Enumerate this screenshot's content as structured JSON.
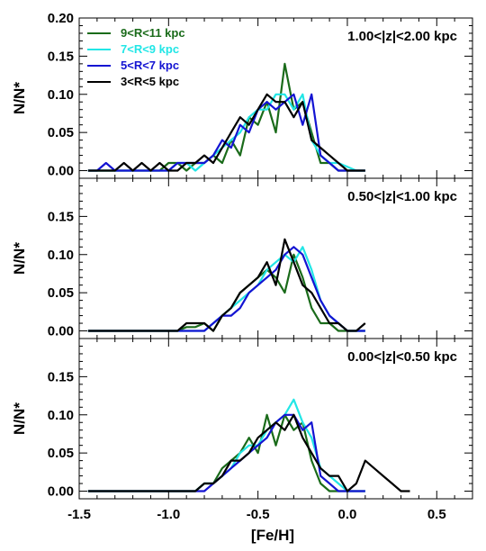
{
  "chart_data": {
    "type": "line",
    "xlabel": "[Fe/H]",
    "ylabel": "N/N*",
    "xlim": [
      -1.5,
      0.7
    ],
    "ylim": [
      -0.01,
      0.2
    ],
    "x_ticks": [
      "-1.5",
      "-1.0",
      "-0.5",
      "0.0",
      "0.5"
    ],
    "y_ticks": [
      "0.00",
      "0.05",
      "0.10",
      "0.15"
    ],
    "y_ticks_top": [
      "0.00",
      "0.05",
      "0.10",
      "0.15",
      "0.20"
    ],
    "legend": [
      {
        "name": "9<R<11 kpc",
        "color": "#1a6b1a"
      },
      {
        "name": "7<R<9 kpc",
        "color": "#22e6e6"
      },
      {
        "name": "5<R<7 kpc",
        "color": "#1414d2"
      },
      {
        "name": "3<R<5 kpc",
        "color": "#000000"
      }
    ],
    "panels": [
      {
        "label": "1.00<|z|<2.00 kpc",
        "series": [
          {
            "name": "9<R<11 kpc",
            "color": "#1a6b1a",
            "x": [
              -1.45,
              -1.4,
              -1.35,
              -1.3,
              -1.25,
              -1.2,
              -1.15,
              -1.1,
              -1.05,
              -1.0,
              -0.95,
              -0.9,
              -0.85,
              -0.8,
              -0.75,
              -0.7,
              -0.65,
              -0.6,
              -0.55,
              -0.5,
              -0.45,
              -0.4,
              -0.35,
              -0.3,
              -0.25,
              -0.2,
              -0.15,
              -0.1,
              -0.05,
              0.0,
              0.05,
              0.1
            ],
            "y": [
              0,
              0,
              0,
              0,
              0,
              0,
              0,
              0,
              0,
              0.01,
              0.01,
              0,
              0.01,
              0.01,
              0.02,
              0.01,
              0.04,
              0.02,
              0.07,
              0.06,
              0.09,
              0.05,
              0.14,
              0.08,
              0.09,
              0.05,
              0.01,
              0.01,
              0,
              0,
              0,
              0
            ]
          },
          {
            "name": "7<R<9 kpc",
            "color": "#22e6e6",
            "x": [
              -1.45,
              -1.4,
              -1.35,
              -1.3,
              -1.25,
              -1.2,
              -1.15,
              -1.1,
              -1.05,
              -1.0,
              -0.95,
              -0.9,
              -0.85,
              -0.8,
              -0.75,
              -0.7,
              -0.65,
              -0.6,
              -0.55,
              -0.5,
              -0.45,
              -0.4,
              -0.35,
              -0.3,
              -0.25,
              -0.2,
              -0.15,
              -0.1,
              -0.05,
              0.0,
              0.05,
              0.1
            ],
            "y": [
              0,
              0,
              0,
              0,
              0,
              0,
              0,
              0,
              0,
              0,
              0.01,
              0.01,
              0,
              0.01,
              0.02,
              0.03,
              0.04,
              0.05,
              0.07,
              0.08,
              0.08,
              0.1,
              0.1,
              0.08,
              0.1,
              0.04,
              0.02,
              0.01,
              0.01,
              0.005,
              0,
              0
            ]
          },
          {
            "name": "5<R<7 kpc",
            "color": "#1414d2",
            "x": [
              -1.45,
              -1.4,
              -1.35,
              -1.3,
              -1.25,
              -1.2,
              -1.15,
              -1.1,
              -1.05,
              -1.0,
              -0.95,
              -0.9,
              -0.85,
              -0.8,
              -0.75,
              -0.7,
              -0.65,
              -0.6,
              -0.55,
              -0.5,
              -0.45,
              -0.4,
              -0.35,
              -0.3,
              -0.25,
              -0.2,
              -0.15,
              -0.1,
              -0.05,
              0.0,
              0.05,
              0.1
            ],
            "y": [
              0,
              0,
              0.01,
              0,
              0,
              0,
              0,
              0,
              0,
              0,
              0.01,
              0.01,
              0.01,
              0.01,
              0.02,
              0.04,
              0.03,
              0.06,
              0.05,
              0.08,
              0.09,
              0.08,
              0.09,
              0.1,
              0.06,
              0.1,
              0.02,
              0.01,
              0,
              0,
              0,
              0
            ]
          },
          {
            "name": "3<R<5 kpc",
            "color": "#000000",
            "x": [
              -1.45,
              -1.4,
              -1.35,
              -1.3,
              -1.25,
              -1.2,
              -1.15,
              -1.1,
              -1.05,
              -1.0,
              -0.95,
              -0.9,
              -0.85,
              -0.8,
              -0.75,
              -0.7,
              -0.65,
              -0.6,
              -0.55,
              -0.5,
              -0.45,
              -0.4,
              -0.35,
              -0.3,
              -0.25,
              -0.2,
              -0.15,
              -0.1,
              -0.05,
              0.0,
              0.05,
              0.1
            ],
            "y": [
              0,
              0,
              0,
              0,
              0.01,
              0,
              0.01,
              0,
              0.01,
              0,
              0,
              0.01,
              0.01,
              0.02,
              0.01,
              0.03,
              0.05,
              0.07,
              0.06,
              0.08,
              0.1,
              0.09,
              0.09,
              0.07,
              0.09,
              0.04,
              0.03,
              0.02,
              0.01,
              0,
              0,
              0
            ]
          }
        ]
      },
      {
        "label": "0.50<|z|<1.00 kpc",
        "series": [
          {
            "name": "9<R<11 kpc",
            "color": "#1a6b1a",
            "x": [
              -1.45,
              -1.4,
              -1.35,
              -1.3,
              -1.25,
              -1.2,
              -1.15,
              -1.1,
              -1.05,
              -1.0,
              -0.95,
              -0.9,
              -0.85,
              -0.8,
              -0.75,
              -0.7,
              -0.65,
              -0.6,
              -0.55,
              -0.5,
              -0.45,
              -0.4,
              -0.35,
              -0.3,
              -0.25,
              -0.2,
              -0.15,
              -0.1,
              -0.05,
              0.0,
              0.05,
              0.1
            ],
            "y": [
              0,
              0,
              0,
              0,
              0,
              0,
              0,
              0,
              0,
              0,
              0,
              0.005,
              0.005,
              0.01,
              0,
              0.02,
              0.03,
              0.05,
              0.06,
              0.07,
              0.08,
              0.07,
              0.05,
              0.1,
              0.07,
              0.03,
              0.01,
              0.01,
              0,
              0,
              0,
              0
            ]
          },
          {
            "name": "7<R<9 kpc",
            "color": "#22e6e6",
            "x": [
              -1.45,
              -1.4,
              -1.35,
              -1.3,
              -1.25,
              -1.2,
              -1.15,
              -1.1,
              -1.05,
              -1.0,
              -0.95,
              -0.9,
              -0.85,
              -0.8,
              -0.75,
              -0.7,
              -0.65,
              -0.6,
              -0.55,
              -0.5,
              -0.45,
              -0.4,
              -0.35,
              -0.3,
              -0.25,
              -0.2,
              -0.15,
              -0.1,
              -0.05,
              0.0,
              0.05,
              0.1
            ],
            "y": [
              0,
              0,
              0,
              0,
              0,
              0,
              0,
              0,
              0,
              0,
              0,
              0,
              0,
              0,
              0.01,
              0.02,
              0.03,
              0.04,
              0.05,
              0.06,
              0.08,
              0.09,
              0.1,
              0.09,
              0.11,
              0.08,
              0.04,
              0.02,
              0.01,
              0,
              0,
              0
            ]
          },
          {
            "name": "5<R<7 kpc",
            "color": "#1414d2",
            "x": [
              -1.45,
              -1.4,
              -1.35,
              -1.3,
              -1.25,
              -1.2,
              -1.15,
              -1.1,
              -1.05,
              -1.0,
              -0.95,
              -0.9,
              -0.85,
              -0.8,
              -0.75,
              -0.7,
              -0.65,
              -0.6,
              -0.55,
              -0.5,
              -0.45,
              -0.4,
              -0.35,
              -0.3,
              -0.25,
              -0.2,
              -0.15,
              -0.1,
              -0.05,
              0.0,
              0.05,
              0.1
            ],
            "y": [
              0,
              0,
              0,
              0,
              0,
              0,
              0,
              0,
              0,
              0,
              0,
              0,
              0,
              0,
              0.01,
              0.02,
              0.02,
              0.03,
              0.05,
              0.06,
              0.07,
              0.08,
              0.1,
              0.11,
              0.1,
              0.07,
              0.04,
              0.02,
              0.01,
              0,
              0,
              0
            ]
          },
          {
            "name": "3<R<5 kpc",
            "color": "#000000",
            "x": [
              -1.45,
              -1.4,
              -1.35,
              -1.3,
              -1.25,
              -1.2,
              -1.15,
              -1.1,
              -1.05,
              -1.0,
              -0.95,
              -0.9,
              -0.85,
              -0.8,
              -0.75,
              -0.7,
              -0.65,
              -0.6,
              -0.55,
              -0.5,
              -0.45,
              -0.4,
              -0.35,
              -0.3,
              -0.25,
              -0.2,
              -0.15,
              -0.1,
              -0.05,
              0.0,
              0.05,
              0.1
            ],
            "y": [
              0,
              0,
              0,
              0,
              0,
              0,
              0,
              0,
              0,
              0,
              0,
              0.01,
              0.01,
              0.01,
              0,
              0.02,
              0.03,
              0.05,
              0.06,
              0.07,
              0.09,
              0.06,
              0.12,
              0.09,
              0.06,
              0.05,
              0.03,
              0.01,
              0.01,
              0,
              0,
              0.01
            ]
          }
        ]
      },
      {
        "label": "0.00<|z|<0.50 kpc",
        "series": [
          {
            "name": "9<R<11 kpc",
            "color": "#1a6b1a",
            "x": [
              -1.45,
              -1.4,
              -1.35,
              -1.3,
              -1.25,
              -1.2,
              -1.15,
              -1.1,
              -1.05,
              -1.0,
              -0.95,
              -0.9,
              -0.85,
              -0.8,
              -0.75,
              -0.7,
              -0.65,
              -0.6,
              -0.55,
              -0.5,
              -0.45,
              -0.4,
              -0.35,
              -0.3,
              -0.25,
              -0.2,
              -0.15,
              -0.1,
              -0.05,
              0.0,
              0.05,
              0.1
            ],
            "y": [
              0,
              0,
              0,
              0,
              0,
              0,
              0,
              0,
              0,
              0,
              0,
              0,
              0,
              0.01,
              0.01,
              0.03,
              0.04,
              0.05,
              0.07,
              0.05,
              0.1,
              0.06,
              0.1,
              0.08,
              0.09,
              0.04,
              0.01,
              0,
              0,
              0,
              0,
              0
            ]
          },
          {
            "name": "7<R<9 kpc",
            "color": "#22e6e6",
            "x": [
              -1.45,
              -1.4,
              -1.35,
              -1.3,
              -1.25,
              -1.2,
              -1.15,
              -1.1,
              -1.05,
              -1.0,
              -0.95,
              -0.9,
              -0.85,
              -0.8,
              -0.75,
              -0.7,
              -0.65,
              -0.6,
              -0.55,
              -0.5,
              -0.45,
              -0.4,
              -0.35,
              -0.3,
              -0.25,
              -0.2,
              -0.15,
              -0.1,
              -0.05,
              0.0,
              0.05,
              0.1
            ],
            "y": [
              0,
              0,
              0,
              0,
              0,
              0,
              0,
              0,
              0,
              0,
              0,
              0,
              0,
              0.01,
              0.01,
              0.02,
              0.03,
              0.05,
              0.06,
              0.06,
              0.08,
              0.09,
              0.1,
              0.12,
              0.09,
              0.07,
              0.03,
              0.02,
              0.01,
              0,
              0,
              0
            ]
          },
          {
            "name": "5<R<7 kpc",
            "color": "#1414d2",
            "x": [
              -1.45,
              -1.4,
              -1.35,
              -1.3,
              -1.25,
              -1.2,
              -1.15,
              -1.1,
              -1.05,
              -1.0,
              -0.95,
              -0.9,
              -0.85,
              -0.8,
              -0.75,
              -0.7,
              -0.65,
              -0.6,
              -0.55,
              -0.5,
              -0.45,
              -0.4,
              -0.35,
              -0.3,
              -0.25,
              -0.2,
              -0.15,
              -0.1,
              -0.05,
              0.0,
              0.05,
              0.1
            ],
            "y": [
              0,
              0,
              0,
              0,
              0,
              0,
              0,
              0,
              0,
              0,
              0,
              0,
              0,
              0,
              0.01,
              0.02,
              0.03,
              0.04,
              0.05,
              0.06,
              0.07,
              0.09,
              0.1,
              0.1,
              0.08,
              0.09,
              0.02,
              0.01,
              0,
              0,
              0,
              0
            ]
          },
          {
            "name": "3<R<5 kpc",
            "color": "#000000",
            "x": [
              -1.45,
              -1.4,
              -1.35,
              -1.3,
              -1.25,
              -1.2,
              -1.15,
              -1.1,
              -1.05,
              -1.0,
              -0.95,
              -0.9,
              -0.85,
              -0.8,
              -0.75,
              -0.7,
              -0.65,
              -0.6,
              -0.55,
              -0.5,
              -0.45,
              -0.4,
              -0.35,
              -0.3,
              -0.25,
              -0.2,
              -0.15,
              -0.1,
              -0.05,
              0.0,
              0.05,
              0.1,
              0.15,
              0.2,
              0.25,
              0.3,
              0.35
            ],
            "y": [
              0,
              0,
              0,
              0,
              0,
              0,
              0,
              0,
              0,
              0,
              0,
              0,
              0,
              0.01,
              0.01,
              0.02,
              0.04,
              0.04,
              0.05,
              0.07,
              0.08,
              0.09,
              0.08,
              0.1,
              0.07,
              0.05,
              0.03,
              0.02,
              0.02,
              0,
              0.01,
              0.04,
              0.03,
              0.02,
              0.01,
              0,
              0
            ]
          }
        ]
      }
    ]
  }
}
